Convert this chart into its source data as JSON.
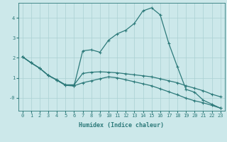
{
  "xlabel": "Humidex (Indice chaleur)",
  "bg_color": "#cce8ea",
  "line_color": "#2d7a7a",
  "grid_color": "#aad0d2",
  "xlim": [
    -0.5,
    23.5
  ],
  "ylim": [
    -0.65,
    4.75
  ],
  "xticks": [
    0,
    1,
    2,
    3,
    4,
    5,
    6,
    7,
    8,
    9,
    10,
    11,
    12,
    13,
    14,
    15,
    16,
    17,
    18,
    19,
    20,
    21,
    22,
    23
  ],
  "yticks": [
    0,
    1,
    2,
    3,
    4
  ],
  "ytick_labels": [
    "-0",
    "1",
    "2",
    "3",
    "4"
  ],
  "line1_x": [
    0,
    1,
    2,
    3,
    4,
    5,
    6,
    7,
    8,
    9,
    10,
    11,
    12,
    13,
    14,
    15,
    16,
    17,
    18,
    19,
    20,
    21,
    22,
    23
  ],
  "line1_y": [
    2.05,
    1.75,
    1.48,
    1.12,
    0.9,
    0.65,
    0.65,
    1.22,
    1.28,
    1.3,
    1.28,
    1.25,
    1.2,
    1.15,
    1.1,
    1.05,
    0.95,
    0.85,
    0.75,
    0.6,
    0.48,
    0.35,
    0.18,
    0.05
  ],
  "line2_x": [
    0,
    1,
    2,
    3,
    4,
    5,
    6,
    7,
    8,
    9,
    10,
    11,
    12,
    13,
    14,
    15,
    16,
    17,
    18,
    19,
    20,
    21,
    22,
    23
  ],
  "line2_y": [
    2.05,
    1.75,
    1.48,
    1.12,
    0.88,
    0.62,
    0.6,
    0.75,
    0.85,
    0.95,
    1.05,
    1.0,
    0.9,
    0.8,
    0.7,
    0.6,
    0.45,
    0.3,
    0.15,
    -0.02,
    -0.15,
    -0.25,
    -0.38,
    -0.52
  ],
  "line3_x": [
    0,
    1,
    2,
    3,
    4,
    5,
    6,
    7,
    8,
    9,
    10,
    11,
    12,
    13,
    14,
    15,
    16,
    17,
    18,
    19,
    20,
    21,
    22,
    23
  ],
  "line3_y": [
    2.05,
    1.75,
    1.48,
    1.12,
    0.88,
    0.62,
    0.6,
    2.35,
    2.4,
    2.28,
    2.88,
    3.2,
    3.38,
    3.72,
    4.35,
    4.5,
    4.15,
    2.72,
    1.55,
    0.42,
    0.28,
    -0.12,
    -0.32,
    -0.52
  ],
  "marker": "+",
  "markersize": 3,
  "linewidth": 0.9,
  "tick_fontsize": 5.0,
  "label_fontsize": 6.0
}
